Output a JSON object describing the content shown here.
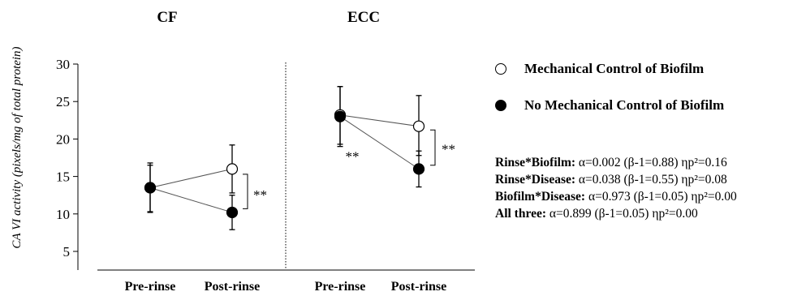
{
  "chart_data": {
    "type": "line",
    "ylabel": "CA VI activity (pixels/mg of total protein)",
    "ylim": [
      5,
      30
    ],
    "yticks": [
      5,
      10,
      15,
      20,
      25,
      30
    ],
    "categories": [
      "Pre-rinse",
      "Post-rinse"
    ],
    "panels": [
      {
        "title": "CF",
        "series": [
          {
            "name": "Mechanical Control of Biofilm",
            "values": [
              13.5,
              16.0
            ],
            "err_lo": [
              10.2,
              12.8
            ],
            "err_hi": [
              16.8,
              19.2
            ]
          },
          {
            "name": "No Mechanical Control of Biofilm",
            "values": [
              13.5,
              10.2
            ],
            "err_lo": [
              10.3,
              7.9
            ],
            "err_hi": [
              16.5,
              12.5
            ]
          }
        ],
        "significance": "**"
      },
      {
        "title": "ECC",
        "series": [
          {
            "name": "Mechanical Control of Biofilm",
            "values": [
              23.2,
              21.7
            ],
            "err_lo": [
              19.3,
              17.8
            ],
            "err_hi": [
              27.0,
              25.8
            ]
          },
          {
            "name": "No Mechanical Control of Biofilm",
            "values": [
              23.0,
              16.0
            ],
            "err_lo": [
              19.0,
              13.6
            ],
            "err_hi": [
              27.0,
              18.4
            ]
          }
        ],
        "significance_between": "**",
        "significance_bracket": "**"
      }
    ],
    "legend": [
      {
        "label": "Mechanical Control of Biofilm",
        "marker": "open"
      },
      {
        "label": "No Mechanical Control of Biofilm",
        "marker": "filled"
      }
    ]
  },
  "stats": [
    {
      "term": "Rinse*Biofilm:",
      "value": " α=0.002 (β-1=0.88) ηp²=0.16"
    },
    {
      "term": "Rinse*Disease:",
      "value": " α=0.038 (β-1=0.55) ηp²=0.08"
    },
    {
      "term": "Biofilm*Disease:",
      "value": " α=0.973 (β-1=0.05) ηp²=0.00"
    },
    {
      "term": "All three:",
      "value": " α=0.899 (β-1=0.05) ηp²=0.00"
    }
  ]
}
